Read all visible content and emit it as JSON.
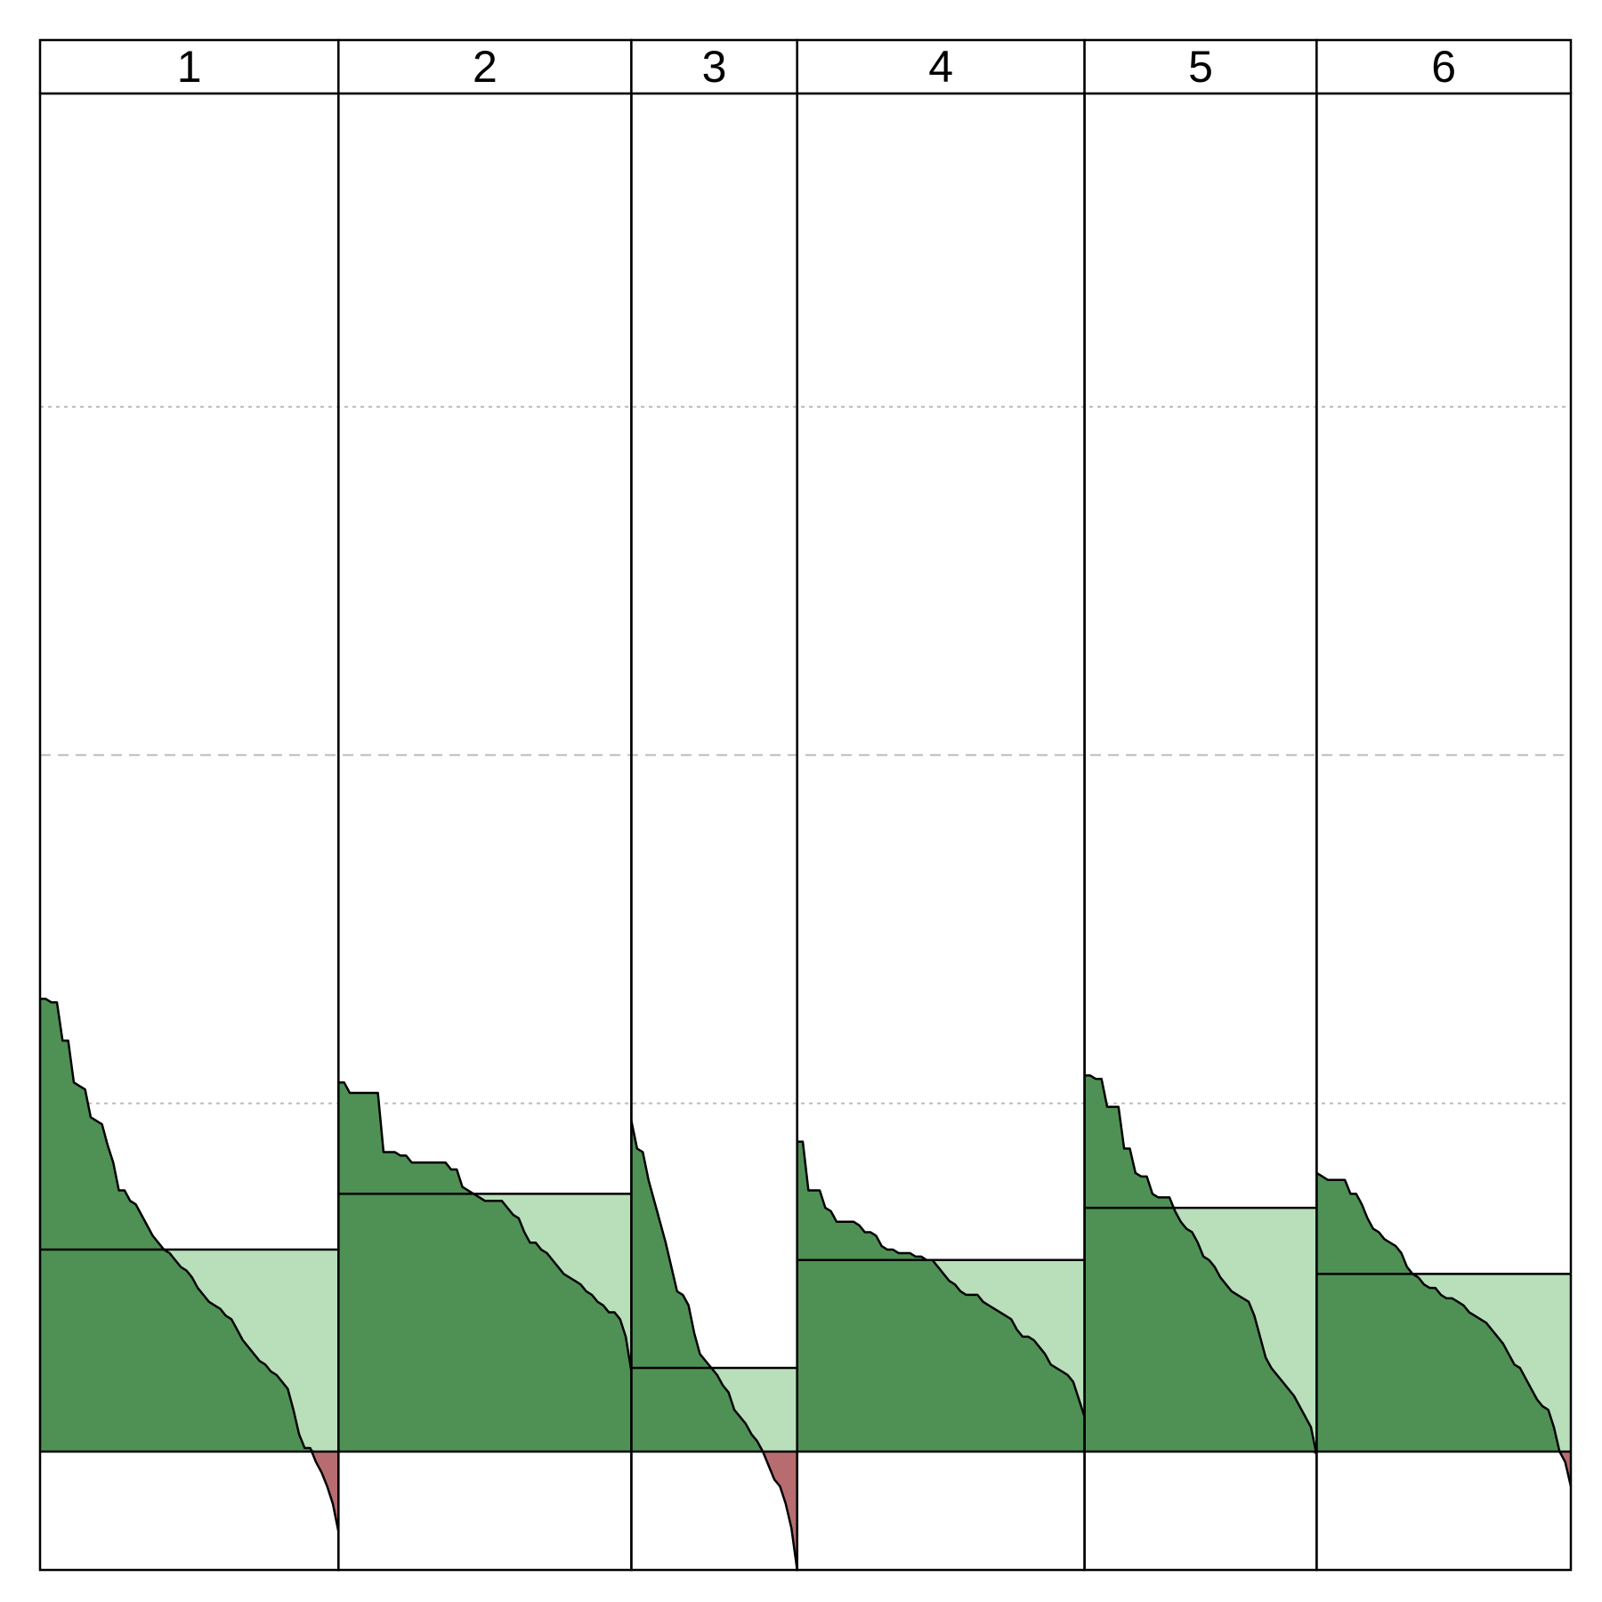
{
  "chart_data": {
    "type": "area",
    "panels": [
      {
        "label": "1",
        "average": 0.58,
        "values": [
          1.3,
          1.3,
          1.29,
          1.29,
          1.18,
          1.18,
          1.06,
          1.05,
          1.04,
          0.96,
          0.95,
          0.94,
          0.88,
          0.83,
          0.75,
          0.75,
          0.72,
          0.71,
          0.68,
          0.65,
          0.62,
          0.6,
          0.58,
          0.57,
          0.55,
          0.53,
          0.52,
          0.5,
          0.47,
          0.45,
          0.43,
          0.42,
          0.41,
          0.39,
          0.38,
          0.35,
          0.32,
          0.3,
          0.28,
          0.26,
          0.25,
          0.23,
          0.22,
          0.2,
          0.18,
          0.12,
          0.05,
          0.01,
          0.01,
          -0.03,
          -0.06,
          -0.1,
          -0.15,
          -0.23
        ]
      },
      {
        "label": "2",
        "average": 0.74,
        "values": [
          1.06,
          1.06,
          1.03,
          1.03,
          1.03,
          1.03,
          1.03,
          1.03,
          0.86,
          0.86,
          0.86,
          0.85,
          0.85,
          0.83,
          0.83,
          0.83,
          0.83,
          0.83,
          0.83,
          0.83,
          0.81,
          0.81,
          0.76,
          0.75,
          0.74,
          0.73,
          0.72,
          0.72,
          0.72,
          0.72,
          0.7,
          0.68,
          0.67,
          0.63,
          0.6,
          0.6,
          0.58,
          0.57,
          0.55,
          0.53,
          0.51,
          0.5,
          0.49,
          0.48,
          0.46,
          0.45,
          0.43,
          0.42,
          0.4,
          0.4,
          0.38,
          0.33,
          0.23
        ]
      },
      {
        "label": "3",
        "average": 0.24,
        "values": [
          0.95,
          0.87,
          0.86,
          0.78,
          0.72,
          0.66,
          0.6,
          0.53,
          0.46,
          0.45,
          0.42,
          0.34,
          0.28,
          0.26,
          0.24,
          0.22,
          0.19,
          0.17,
          0.12,
          0.1,
          0.08,
          0.05,
          0.03,
          0.0,
          -0.04,
          -0.08,
          -0.1,
          -0.15,
          -0.22,
          -0.34
        ]
      },
      {
        "label": "4",
        "average": 0.55,
        "values": [
          0.89,
          0.89,
          0.75,
          0.75,
          0.75,
          0.7,
          0.69,
          0.66,
          0.66,
          0.66,
          0.66,
          0.65,
          0.63,
          0.63,
          0.62,
          0.59,
          0.58,
          0.58,
          0.57,
          0.57,
          0.57,
          0.56,
          0.56,
          0.55,
          0.55,
          0.53,
          0.51,
          0.49,
          0.48,
          0.46,
          0.45,
          0.45,
          0.45,
          0.43,
          0.42,
          0.41,
          0.4,
          0.39,
          0.38,
          0.35,
          0.33,
          0.33,
          0.32,
          0.3,
          0.28,
          0.25,
          0.24,
          0.23,
          0.22,
          0.2,
          0.15,
          0.1
        ]
      },
      {
        "label": "5",
        "average": 0.7,
        "values": [
          1.08,
          1.08,
          1.07,
          1.07,
          0.99,
          0.99,
          0.99,
          0.87,
          0.87,
          0.8,
          0.79,
          0.79,
          0.74,
          0.73,
          0.73,
          0.73,
          0.69,
          0.66,
          0.64,
          0.63,
          0.6,
          0.56,
          0.55,
          0.53,
          0.5,
          0.48,
          0.46,
          0.45,
          0.44,
          0.43,
          0.39,
          0.33,
          0.27,
          0.24,
          0.22,
          0.2,
          0.18,
          0.16,
          0.13,
          0.1,
          0.07,
          -0.01
        ]
      },
      {
        "label": "6",
        "average": 0.51,
        "values": [
          0.8,
          0.79,
          0.78,
          0.78,
          0.78,
          0.78,
          0.74,
          0.74,
          0.71,
          0.67,
          0.64,
          0.63,
          0.61,
          0.6,
          0.59,
          0.57,
          0.53,
          0.51,
          0.5,
          0.48,
          0.47,
          0.47,
          0.45,
          0.44,
          0.44,
          0.43,
          0.42,
          0.4,
          0.39,
          0.38,
          0.37,
          0.35,
          0.33,
          0.31,
          0.28,
          0.25,
          0.24,
          0.21,
          0.18,
          0.15,
          0.13,
          0.12,
          0.07,
          0.0,
          -0.03,
          -0.1
        ]
      }
    ],
    "ylim": [
      -0.34,
      3.9
    ],
    "gridlines": [
      {
        "y": 1.0,
        "style": "dotted"
      },
      {
        "y": 2.0,
        "style": "dashed"
      },
      {
        "y": 3.0,
        "style": "dotted"
      }
    ],
    "grid": true,
    "legend": "none",
    "colors": {
      "positive": "#4f9155",
      "average_fill": "#b8dfba",
      "negative": "#b76d70",
      "outline": "#000000",
      "gridline": "#bbbbbb"
    }
  }
}
